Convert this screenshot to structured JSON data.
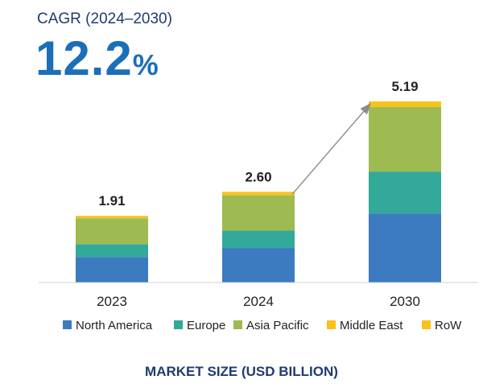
{
  "header": {
    "cagr_label": "CAGR (2024–2030)",
    "cagr_number": "12.2",
    "cagr_unit": "%"
  },
  "footer": {
    "title": "MARKET SIZE (USD BILLION)"
  },
  "chart_data": {
    "type": "bar",
    "stacked": true,
    "categories": [
      "2023",
      "2024",
      "2030"
    ],
    "totals": [
      "1.91",
      "2.60",
      "5.19"
    ],
    "series": [
      {
        "name": "North America",
        "color": "#3c7bbf",
        "values": [
          0.73,
          0.99,
          1.98
        ]
      },
      {
        "name": "Europe",
        "color": "#33a99a",
        "values": [
          0.37,
          0.5,
          1.2
        ]
      },
      {
        "name": "Asia Pacific",
        "color": "#9dbb50",
        "values": [
          0.74,
          1.01,
          1.85
        ]
      },
      {
        "name": "Middle East",
        "color": "#f7c31b",
        "values": [
          0.07,
          0.1,
          0.16
        ]
      },
      {
        "name": "RoW",
        "color": "#f7c31b",
        "values": [
          0.0,
          0.0,
          0.0
        ]
      }
    ],
    "ylim": [
      0,
      5.19
    ],
    "title": "",
    "xlabel": "MARKET SIZE (USD BILLION)",
    "ylabel": "",
    "legend_position": "bottom",
    "annotation": "growth arrow from 2024 to 2030"
  }
}
